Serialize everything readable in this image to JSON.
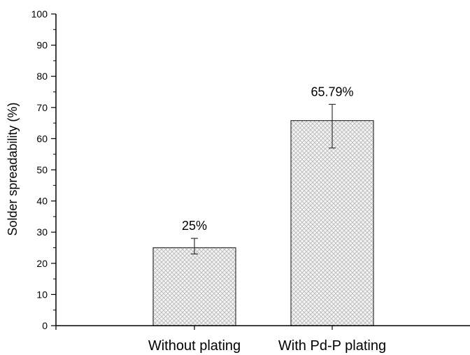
{
  "chart_data": {
    "type": "bar",
    "categories": [
      "Without plating",
      "With Pd-P plating"
    ],
    "values": [
      25,
      65.79
    ],
    "error_low": [
      23,
      57
    ],
    "error_high": [
      28,
      71
    ],
    "data_labels": [
      "25%",
      "65.79%"
    ],
    "title": "",
    "xlabel": "",
    "ylabel": "Solder spreadability (%)",
    "ylim": [
      0,
      100
    ],
    "y_ticks": [
      0,
      10,
      20,
      30,
      40,
      50,
      60,
      70,
      80,
      90,
      100
    ],
    "y_tick_labels": [
      "0",
      "10",
      "20",
      "30",
      "40",
      "50",
      "60",
      "70",
      "80",
      "90",
      "100"
    ],
    "grid": false,
    "legend": "none",
    "bar_fill": "crosshatch",
    "colors": {
      "axis": "#000000",
      "bar_stroke": "#333333",
      "hatch": "#b8b8b8"
    }
  }
}
